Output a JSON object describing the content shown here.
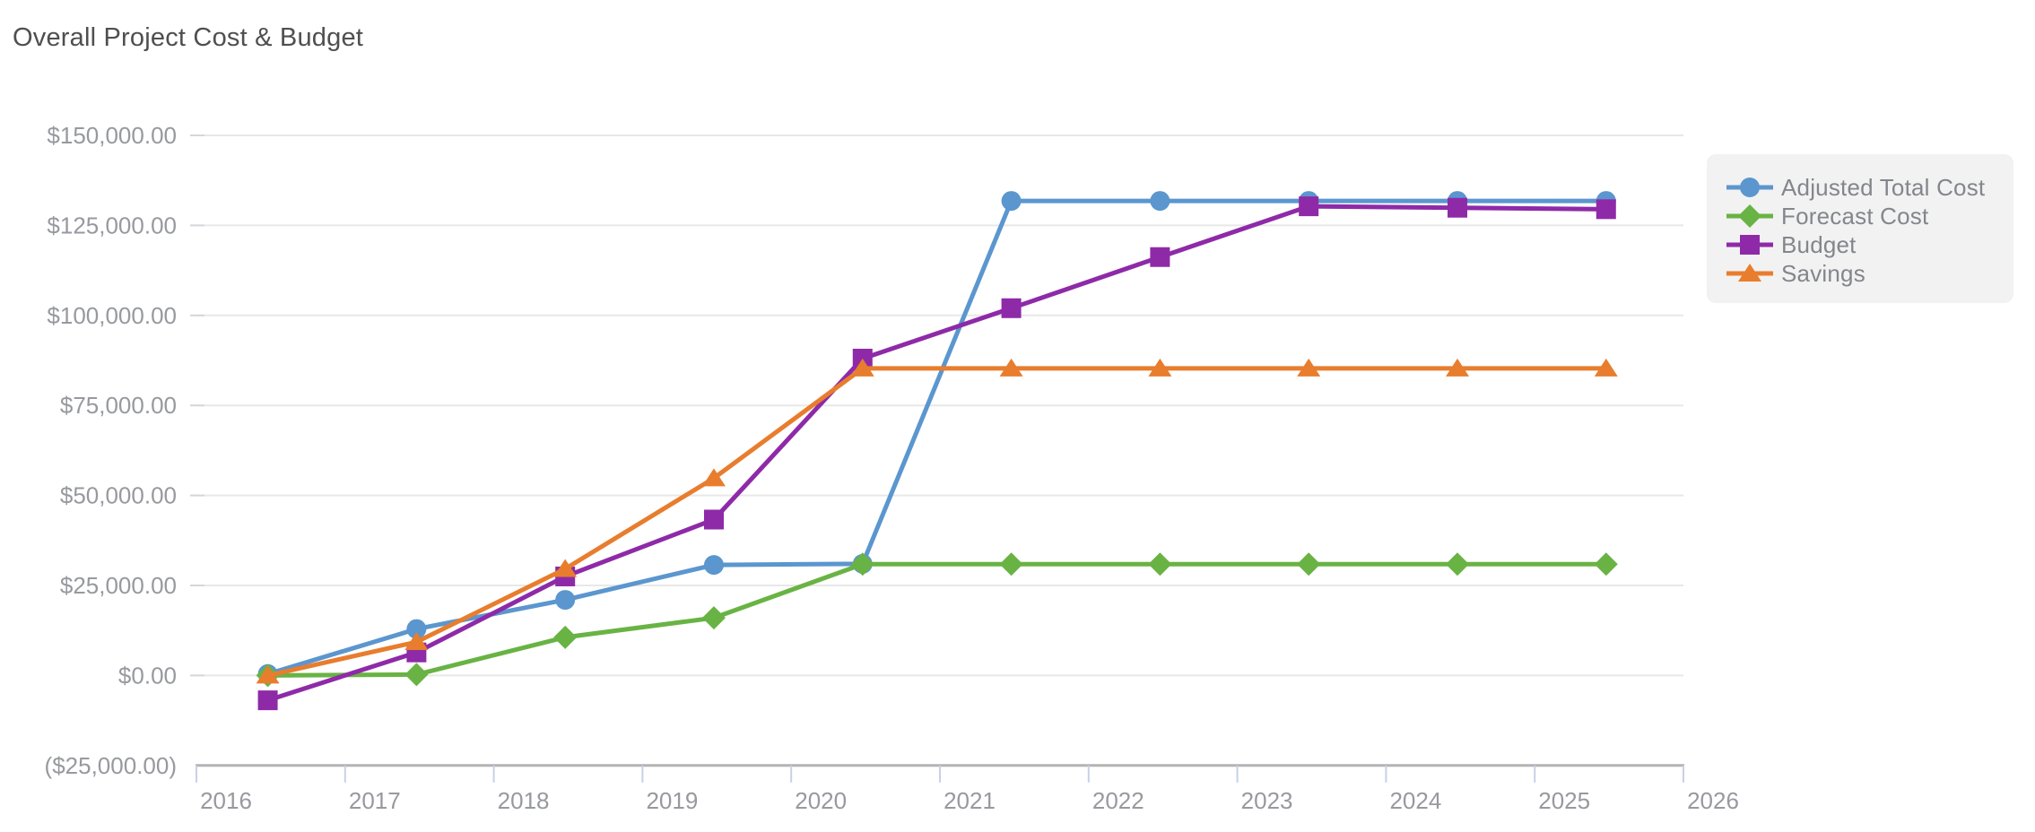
{
  "chart_data": {
    "type": "line",
    "title": "Overall Project Cost & Budget",
    "xlabel": "",
    "ylabel": "",
    "xlim": [
      2016,
      2026
    ],
    "ylim": [
      -25000,
      150000
    ],
    "grid": "horizontal",
    "legend_position": "right",
    "x_ticks": [
      2016,
      2017,
      2018,
      2019,
      2020,
      2021,
      2022,
      2023,
      2024,
      2025,
      2026
    ],
    "y_ticks": [
      {
        "value": 150000,
        "label": "$150,000.00"
      },
      {
        "value": 125000,
        "label": "$125,000.00"
      },
      {
        "value": 100000,
        "label": "$100,000.00"
      },
      {
        "value": 75000,
        "label": "$75,000.00"
      },
      {
        "value": 50000,
        "label": "$50,000.00"
      },
      {
        "value": 25000,
        "label": "$25,000.00"
      },
      {
        "value": 0,
        "label": "$0.00"
      },
      {
        "value": -25000,
        "label": "($25,000.00)"
      }
    ],
    "x": [
      2016,
      2017,
      2018,
      2019,
      2020,
      2021,
      2022,
      2023,
      2024,
      2025
    ],
    "series": [
      {
        "name": "Adjusted Total Cost",
        "marker": "circle",
        "color": "#5B96CF",
        "values": [
          400,
          12900,
          21000,
          30700,
          31000,
          131800,
          131800,
          131800,
          131800,
          131800
        ]
      },
      {
        "name": "Forecast Cost",
        "marker": "diamond",
        "color": "#69B344",
        "values": [
          0,
          250,
          10600,
          16000,
          30900,
          30900,
          30900,
          30900,
          30900,
          30900
        ]
      },
      {
        "name": "Budget",
        "marker": "square",
        "color": "#8E2AA8",
        "values": [
          -6900,
          6400,
          27500,
          43300,
          88000,
          102000,
          116200,
          130300,
          129900,
          129500
        ]
      },
      {
        "name": "Savings",
        "marker": "triangle",
        "color": "#E87D2E",
        "values": [
          0,
          9300,
          29600,
          54800,
          85300,
          85300,
          85300,
          85300,
          85300,
          85300
        ]
      }
    ]
  },
  "colors": {
    "title_text": "#4F4F4F",
    "axis_label_text": "#97999E",
    "legend_text": "#83868C",
    "legend_background": "#F2F2F2",
    "gridline": "#E8E8E8",
    "axis_line": "#B3B3B3",
    "x_tick": "#C7D0E8",
    "y_tick_dash": "#D3D6DB",
    "background": "#FFFFFF"
  }
}
